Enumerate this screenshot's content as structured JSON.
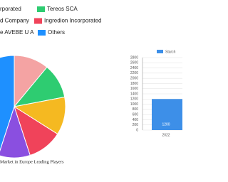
{
  "chart_data": [
    {
      "type": "pie",
      "title": "Market in Europe Leading Players",
      "categories": [
        "rporated",
        "Tereos SCA",
        "d Company",
        "Ingredion Incorporated",
        "e AVEBE U A",
        "Others"
      ],
      "values": [
        11,
        11,
        12,
        11,
        10,
        45
      ],
      "colors": [
        "#f4a3a3",
        "#2ecc71",
        "#f5b921",
        "#f0435a",
        "#8a4fe0",
        "#1e90ff"
      ]
    },
    {
      "type": "bar",
      "categories": [
        "2022"
      ],
      "series": [
        {
          "name": "Starch",
          "color": "#3d8fe8",
          "values": [
            1200
          ]
        }
      ],
      "ylim": [
        0,
        2800
      ],
      "yticks": [
        0,
        200,
        400,
        600,
        800,
        1000,
        1200,
        1400,
        1600,
        1800,
        2000,
        2200,
        2400,
        2600,
        2800
      ],
      "grid": true
    }
  ]
}
